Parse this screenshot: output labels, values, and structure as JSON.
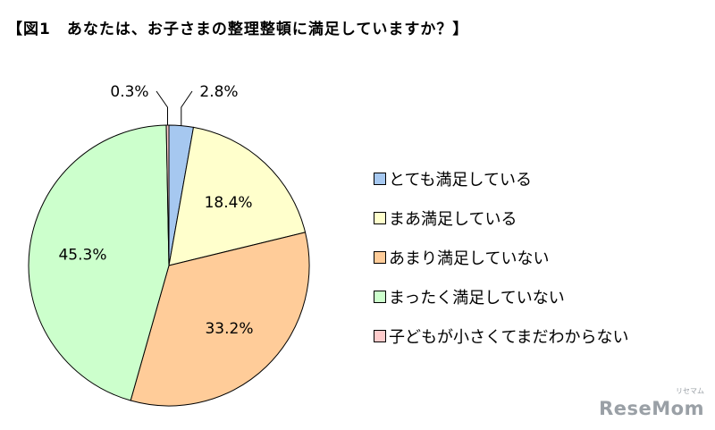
{
  "title": "【図1　あなたは、お子さまの整理整頓に満足していますか？】",
  "chart_data": {
    "type": "pie",
    "title": "【図1　あなたは、お子さまの整理整頓に満足していますか？】",
    "slices": [
      {
        "label": "とても満足している",
        "value": 2.8,
        "display": "2.8%",
        "color": "#a6c8f0"
      },
      {
        "label": "まあ満足している",
        "value": 18.4,
        "display": "18.4%",
        "color": "#ffffcc"
      },
      {
        "label": "あまり満足していない",
        "value": 33.2,
        "display": "33.2%",
        "color": "#ffcc99"
      },
      {
        "label": "まったく満足していない",
        "value": 45.3,
        "display": "45.3%",
        "color": "#ccffcc"
      },
      {
        "label": "子どもが小さくてまだわからない",
        "value": 0.3,
        "display": "0.3%",
        "color": "#ffcccc"
      }
    ],
    "legend_position": "right"
  },
  "watermark": {
    "text": "ReseMom",
    "small": "リセマム"
  }
}
